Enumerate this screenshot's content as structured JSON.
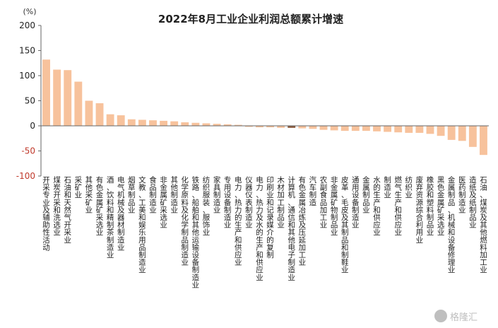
{
  "watermark": "格隆汇",
  "chart_data": {
    "type": "bar",
    "title": "2022年8月工业企业利润总额累计增速",
    "ylabel": "(%)",
    "ylim": [
      -100,
      200
    ],
    "yticks": [
      200,
      150,
      100,
      50,
      0,
      -50,
      -100
    ],
    "grid": false,
    "bar_color": "#f7c29c",
    "highlight_color": "#8b5a3c",
    "highlight_index": 23,
    "categories": [
      "开采专业及辅助性活动",
      "煤炭开采和洗选业",
      "石油和天然气开采业",
      "采矿业",
      "其他采矿业",
      "有色金属矿采选业",
      "酒、饮料和精制茶制造业",
      "电气机械及器材制造业",
      "烟草制品业",
      "文教、工美和娱乐用品制造业",
      "食品制造业",
      "非金属矿采选业",
      "其他制造业",
      "化学原料及化学制品制造业",
      "铁路、船舶和其他运输设备制造业",
      "纺织服装、服饰业",
      "家具制造业",
      "专用设备制造业",
      "电力、热力的生产和供应业",
      "仪器仪表制造业",
      "电力、热力及水的生产和供应业",
      "印刷业和记录媒介的复制",
      "木材加工制品业",
      "计算机、通信和其他电子制造业",
      "有色金属冶炼及压延加工业",
      "汽车制造",
      "农副食品加工业",
      "非金属矿物制品业",
      "皮革、毛皮及其制品和制鞋业",
      "通用设备制造业",
      "金属制品业",
      "水的生产和供应业",
      "制造业",
      "燃气生产和供应业",
      "纺织业",
      "废弃资源综合利用业",
      "橡胶和塑料制品业",
      "黑色金属矿采选业",
      "金属制品、机械和设备修理业",
      "医药制造业",
      "造纸及纸制品业",
      "石油、煤炭及其他燃料加工业"
    ],
    "values": [
      132,
      112,
      111,
      88,
      50,
      45,
      23,
      21,
      13,
      12,
      11,
      10,
      9,
      7,
      6,
      5,
      4,
      3,
      2,
      -2,
      -3,
      -3,
      -4,
      -4,
      -5,
      -6,
      -8,
      -9,
      -10,
      -10,
      -10,
      -11,
      -12,
      -13,
      -14,
      -14,
      -16,
      -20,
      -28,
      -30,
      -42,
      -58
    ]
  }
}
